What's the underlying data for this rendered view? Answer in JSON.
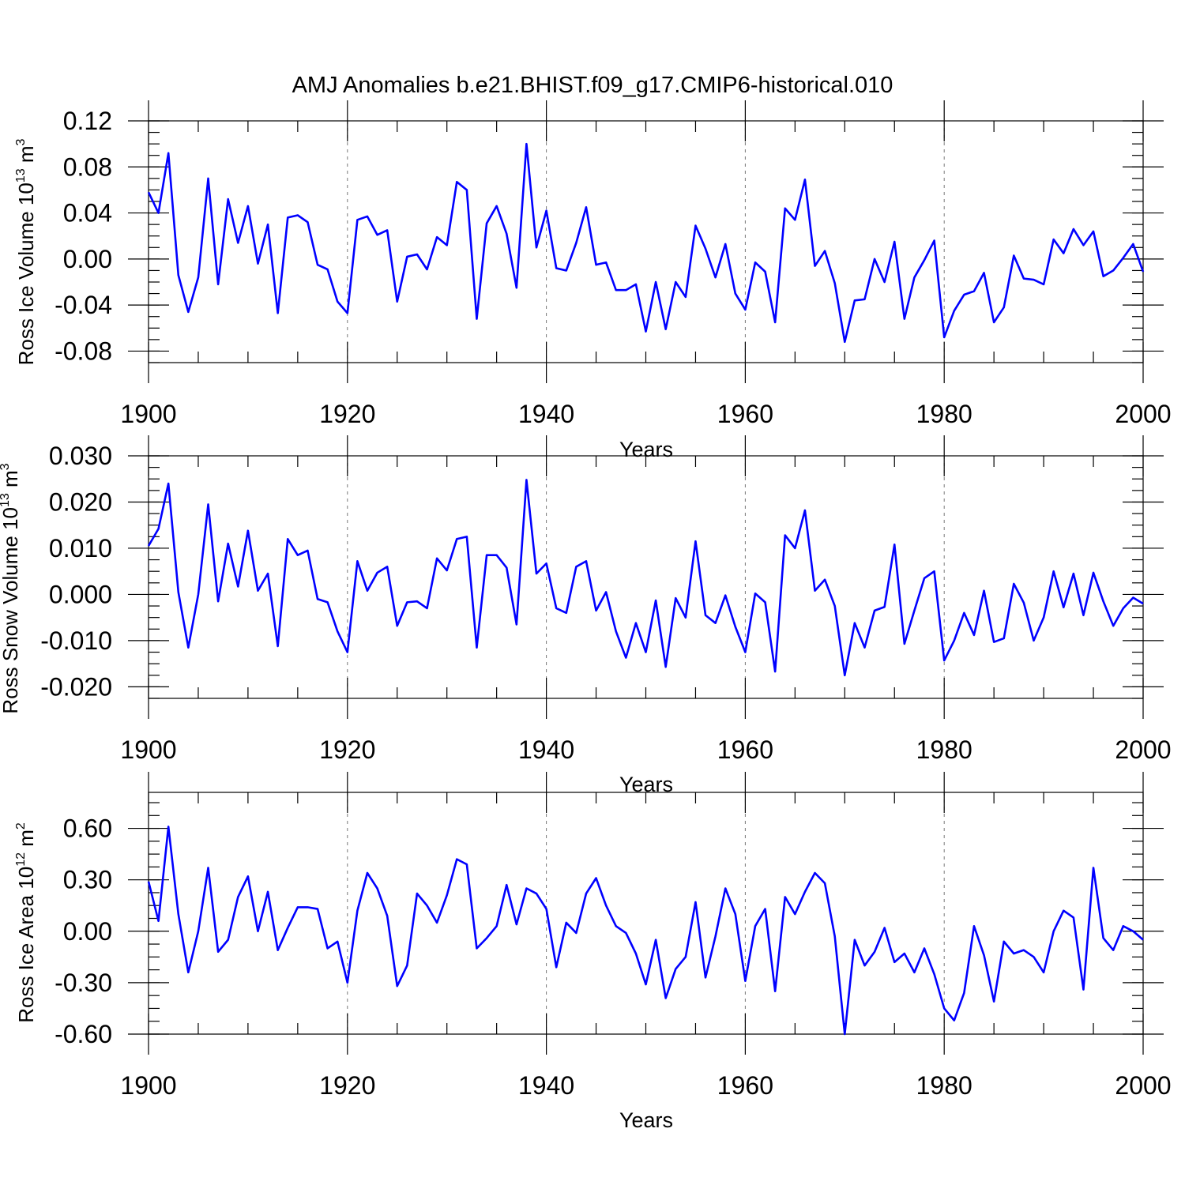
{
  "title": "AMJ Anomalies b.e21.BHIST.f09_g17.CMIP6-historical.010",
  "colors": {
    "line": "#0000ff",
    "axis": "#000000",
    "grid": "#777777"
  },
  "chart_data": [
    {
      "type": "line",
      "ylabel": {
        "text": "Ross Ice Volume 10",
        "sup": "13",
        "unit": " m",
        "unit_sup": "3"
      },
      "xlabel": "Years",
      "xlim": [
        1900,
        2000
      ],
      "ylim": [
        -0.09,
        0.12
      ],
      "xticks": [
        "1900",
        "1920",
        "1940",
        "1960",
        "1980",
        "2000"
      ],
      "yticks": [
        {
          "v": 0.12,
          "label": "0.12"
        },
        {
          "v": 0.08,
          "label": "0.08"
        },
        {
          "v": 0.04,
          "label": "0.04"
        },
        {
          "v": 0.0,
          "label": "0.00"
        },
        {
          "v": -0.04,
          "label": "-0.04"
        },
        {
          "v": -0.08,
          "label": "-0.08"
        }
      ],
      "minor_step": 0.01,
      "x_start": 1900,
      "values": [
        0.058,
        0.04,
        0.092,
        -0.014,
        -0.046,
        -0.016,
        0.07,
        -0.022,
        0.052,
        0.014,
        0.046,
        -0.004,
        0.03,
        -0.047,
        0.036,
        0.038,
        0.032,
        -0.005,
        -0.009,
        -0.037,
        -0.047,
        0.034,
        0.037,
        0.021,
        0.025,
        -0.037,
        0.002,
        0.004,
        -0.009,
        0.019,
        0.012,
        0.067,
        0.06,
        -0.052,
        0.031,
        0.046,
        0.022,
        -0.025,
        0.1,
        0.01,
        0.042,
        -0.008,
        -0.01,
        0.014,
        0.045,
        -0.005,
        -0.003,
        -0.027,
        -0.027,
        -0.022,
        -0.063,
        -0.02,
        -0.061,
        -0.02,
        -0.033,
        0.029,
        0.009,
        -0.016,
        0.013,
        -0.03,
        -0.044,
        -0.003,
        -0.011,
        -0.055,
        0.044,
        0.034,
        0.069,
        -0.006,
        0.007,
        -0.021,
        -0.072,
        -0.036,
        -0.035,
        0.0,
        -0.02,
        0.015,
        -0.052,
        -0.016,
        -0.001,
        0.016,
        -0.068,
        -0.045,
        -0.031,
        -0.028,
        -0.012,
        -0.055,
        -0.042,
        0.003,
        -0.017,
        -0.018,
        -0.022,
        0.017,
        0.005,
        0.026,
        0.012,
        0.024,
        -0.015,
        -0.01,
        0.001,
        0.013,
        -0.011
      ]
    },
    {
      "type": "line",
      "ylabel": {
        "text": "Ross Snow Volume 10",
        "sup": "13",
        "unit": " m",
        "unit_sup": "3"
      },
      "xlabel": "Years",
      "xlim": [
        1900,
        2000
      ],
      "ylim": [
        -0.0225,
        0.03
      ],
      "xticks": [
        "1900",
        "1920",
        "1940",
        "1960",
        "1980",
        "2000"
      ],
      "yticks": [
        {
          "v": 0.03,
          "label": "0.030"
        },
        {
          "v": 0.02,
          "label": "0.020"
        },
        {
          "v": 0.01,
          "label": "0.010"
        },
        {
          "v": 0.0,
          "label": "0.000"
        },
        {
          "v": -0.01,
          "label": "-0.010"
        },
        {
          "v": -0.02,
          "label": "-0.020"
        }
      ],
      "minor_step": 0.0025,
      "x_start": 1900,
      "values": [
        0.0105,
        0.0142,
        0.024,
        0.0005,
        -0.0115,
        0.0,
        0.0195,
        -0.0015,
        0.011,
        0.0017,
        0.0138,
        0.0008,
        0.0045,
        -0.0112,
        0.012,
        0.0085,
        0.0095,
        -0.001,
        -0.0017,
        -0.008,
        -0.0125,
        0.0072,
        0.0008,
        0.0047,
        0.006,
        -0.0068,
        -0.0017,
        -0.0015,
        -0.003,
        0.0078,
        0.0052,
        0.012,
        0.0125,
        -0.0115,
        0.0085,
        0.0085,
        0.0058,
        -0.0065,
        0.0248,
        0.0045,
        0.0067,
        -0.003,
        -0.004,
        0.006,
        0.0072,
        -0.0035,
        0.0005,
        -0.008,
        -0.0137,
        -0.0062,
        -0.0125,
        -0.0013,
        -0.0157,
        -0.0008,
        -0.005,
        0.0115,
        -0.0045,
        -0.0062,
        -0.0002,
        -0.007,
        -0.0125,
        0.0002,
        -0.0017,
        -0.0167,
        0.0128,
        0.01,
        0.0182,
        0.0008,
        0.0032,
        -0.0025,
        -0.0175,
        -0.0062,
        -0.0115,
        -0.0035,
        -0.0027,
        0.0108,
        -0.0107,
        -0.0035,
        0.0035,
        0.005,
        -0.0143,
        -0.01,
        -0.004,
        -0.0088,
        0.0008,
        -0.0103,
        -0.0095,
        0.0023,
        -0.0018,
        -0.01,
        -0.005,
        0.005,
        -0.0028,
        0.0045,
        -0.0045,
        0.0047,
        -0.0015,
        -0.0068,
        -0.003,
        -0.0007,
        -0.002
      ]
    },
    {
      "type": "line",
      "ylabel": {
        "text": "Ross Ice Area 10",
        "sup": "12",
        "unit": " m",
        "unit_sup": "2"
      },
      "xlabel": "Years",
      "xlim": [
        1900,
        2000
      ],
      "ylim": [
        -0.6,
        0.81
      ],
      "xticks": [
        "1900",
        "1920",
        "1940",
        "1960",
        "1980",
        "2000"
      ],
      "yticks": [
        {
          "v": 0.6,
          "label": "0.60"
        },
        {
          "v": 0.3,
          "label": "0.30"
        },
        {
          "v": 0.0,
          "label": "0.00"
        },
        {
          "v": -0.3,
          "label": "-0.30"
        },
        {
          "v": -0.6,
          "label": "-0.60"
        }
      ],
      "minor_step": 0.075,
      "x_start": 1900,
      "values": [
        0.29,
        0.06,
        0.61,
        0.1,
        -0.24,
        0.0,
        0.37,
        -0.12,
        -0.05,
        0.2,
        0.32,
        0.0,
        0.23,
        -0.11,
        0.02,
        0.14,
        0.14,
        0.13,
        -0.1,
        -0.06,
        -0.3,
        0.12,
        0.34,
        0.25,
        0.09,
        -0.32,
        -0.2,
        0.22,
        0.15,
        0.05,
        0.21,
        0.42,
        0.39,
        -0.1,
        -0.04,
        0.03,
        0.27,
        0.04,
        0.25,
        0.22,
        0.13,
        -0.21,
        0.05,
        -0.01,
        0.22,
        0.31,
        0.15,
        0.03,
        -0.01,
        -0.13,
        -0.31,
        -0.05,
        -0.39,
        -0.22,
        -0.15,
        0.17,
        -0.27,
        -0.03,
        0.25,
        0.1,
        -0.29,
        0.03,
        0.13,
        -0.35,
        0.2,
        0.1,
        0.23,
        0.34,
        0.28,
        -0.03,
        -0.6,
        -0.05,
        -0.2,
        -0.12,
        0.02,
        -0.18,
        -0.13,
        -0.24,
        -0.1,
        -0.25,
        -0.45,
        -0.52,
        -0.36,
        0.03,
        -0.14,
        -0.41,
        -0.06,
        -0.13,
        -0.11,
        -0.15,
        -0.24,
        0.0,
        0.12,
        0.08,
        -0.34,
        0.37,
        -0.04,
        -0.11,
        0.03,
        0.0,
        -0.05
      ]
    }
  ]
}
